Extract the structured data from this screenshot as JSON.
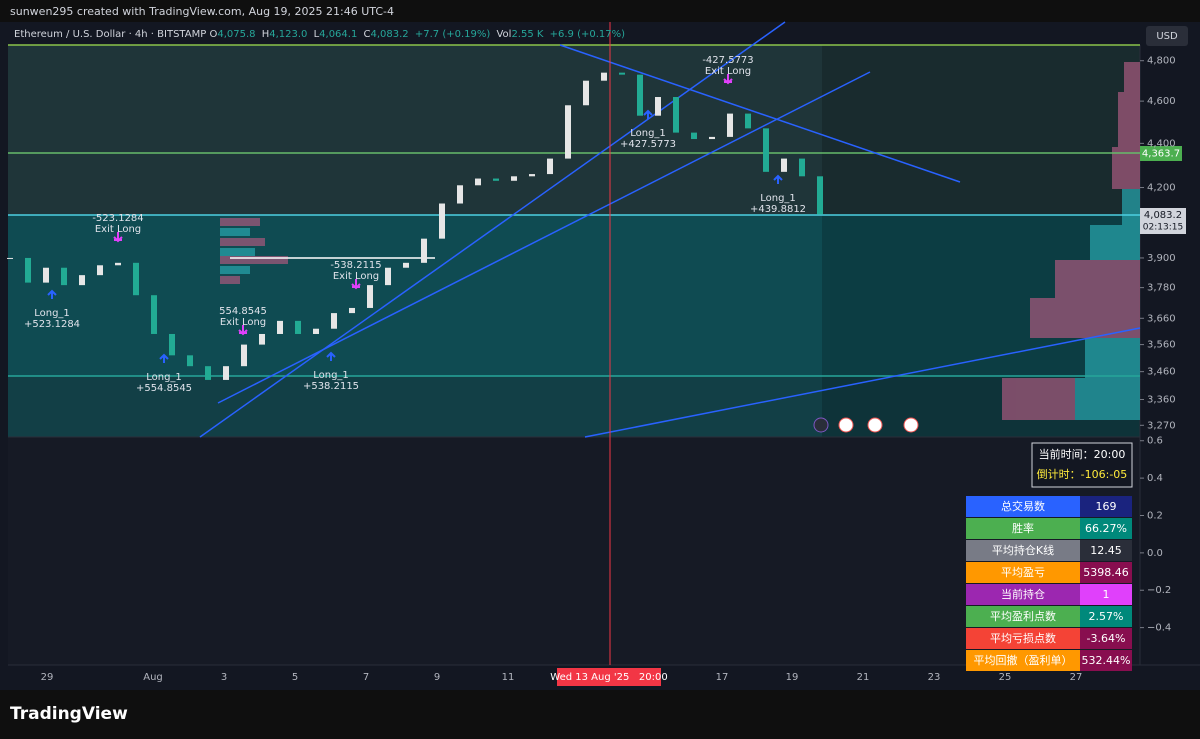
{
  "header": {
    "caption": "sunwen295 created with TradingView.com, Aug 19, 2025 21:46 UTC-4"
  },
  "legend": {
    "symbol": "Ethereum / U.S. Dollar · 4h · BITSTAMP",
    "o": "O",
    "open": "4,075.8",
    "h": "H",
    "high": "4,123.0",
    "l": "L",
    "low": "4,064.1",
    "c": "C",
    "close": "4,083.2",
    "change": "+7.7 (+0.19%)",
    "vol": "Vol",
    "volume": "2.55 K",
    "vol_change": "+6.9 (+0.17%)"
  },
  "chart_data": {
    "type": "candlestick",
    "values": [
      3900,
      3800,
      3860,
      3790,
      3830,
      3870,
      3880,
      3750,
      3600,
      3520,
      3480,
      3430,
      3480,
      3560,
      3600,
      3650,
      3600,
      3620,
      3680,
      3700,
      3790,
      3860,
      3880,
      3980,
      4130,
      4210,
      4240,
      4230,
      4250,
      4260,
      4330,
      4580,
      4700,
      4740,
      4730,
      4530,
      4620,
      4450,
      4420,
      4430,
      4540,
      4470,
      4270,
      4330,
      4250,
      4083.2
    ],
    "up_color": "#e6e6e6",
    "down_color": "#22ab94",
    "ylim": [
      3230,
      4880
    ],
    "log_scale": true,
    "yticks": [
      {
        "value": 4800,
        "label": "4,800"
      },
      {
        "value": 4600,
        "label": "4,600"
      },
      {
        "value": 4400,
        "label": "4,400"
      },
      {
        "value": 4200,
        "label": "4,200"
      },
      {
        "value": 3900,
        "label": "3,900"
      },
      {
        "value": 3780,
        "label": "3,780"
      },
      {
        "value": 3660,
        "label": "3,660"
      },
      {
        "value": 3560,
        "label": "3,560"
      },
      {
        "value": 3460,
        "label": "3,460"
      },
      {
        "value": 3360,
        "label": "3,360"
      },
      {
        "value": 3270,
        "label": "3,270"
      }
    ],
    "x_labels": [
      "29",
      "Aug",
      "3",
      "5",
      "7",
      "9",
      "11",
      "17",
      "19",
      "21",
      "23",
      "25",
      "27"
    ],
    "crosshair_label": "Wed 13 Aug '25   20:00",
    "currency": "USD",
    "price_tags": {
      "level": "4,363.7",
      "last": "4,083.2",
      "countdown": "02:13:15"
    },
    "annotations": [
      {
        "line1": "-523.1284",
        "line2": "Exit Long"
      },
      {
        "line1": "Long_1",
        "line2": "+523.1284"
      },
      {
        "line1": "Long_1",
        "line2": "+554.8545"
      },
      {
        "line1": "554.8545",
        "line2": "Exit Long"
      },
      {
        "line1": "-538.2115",
        "line2": "Exit Long"
      },
      {
        "line1": "Long_1",
        "line2": "+538.2115"
      },
      {
        "line1": "-427.5773",
        "line2": "Exit Long"
      },
      {
        "line1": "Long_1",
        "line2": "+427.5773"
      },
      {
        "line1": "Long_1",
        "line2": "+439.8812"
      }
    ]
  },
  "oscillator": {
    "ylim": [
      -0.6,
      0.62
    ],
    "yticks": [
      0.6,
      0.4,
      0.2,
      {
        "value": 0,
        "label": "0.0"
      },
      {
        "value": -0.2,
        "label": "−0.2"
      },
      {
        "value": -0.4,
        "label": "−0.4"
      }
    ]
  },
  "info": {
    "time": "当前时间：20:00",
    "countdown": "倒计时：-106:-05"
  },
  "stats": {
    "rows": [
      {
        "label": "总交易数",
        "value": "169",
        "label_color": "#2962ff",
        "value_color": "#1a237e"
      },
      {
        "label": "胜率",
        "value": "66.27%",
        "label_color": "#4caf50",
        "value_color": "#00897b"
      },
      {
        "label": "平均持仓K线",
        "value": "12.45",
        "label_color": "#787b86",
        "value_color": "#2a2e39"
      },
      {
        "label": "平均盈亏",
        "value": "5398.46",
        "label_color": "#ff9800",
        "value_color": "#880e4f"
      },
      {
        "label": "当前持仓",
        "value": "1",
        "label_color": "#9c27b0",
        "value_color": "#e040fb"
      },
      {
        "label": "平均盈利点数",
        "value": "2.57%",
        "label_color": "#4caf50",
        "value_color": "#00897b"
      },
      {
        "label": "平均亏损点数",
        "value": "-3.64%",
        "label_color": "#f44336",
        "value_color": "#880e4f"
      },
      {
        "label": "平均回撤（盈利单）",
        "value": "532.44%",
        "label_color": "#ff9800",
        "value_color": "#880e4f"
      }
    ]
  },
  "footer": {
    "brand": "TradingView"
  }
}
